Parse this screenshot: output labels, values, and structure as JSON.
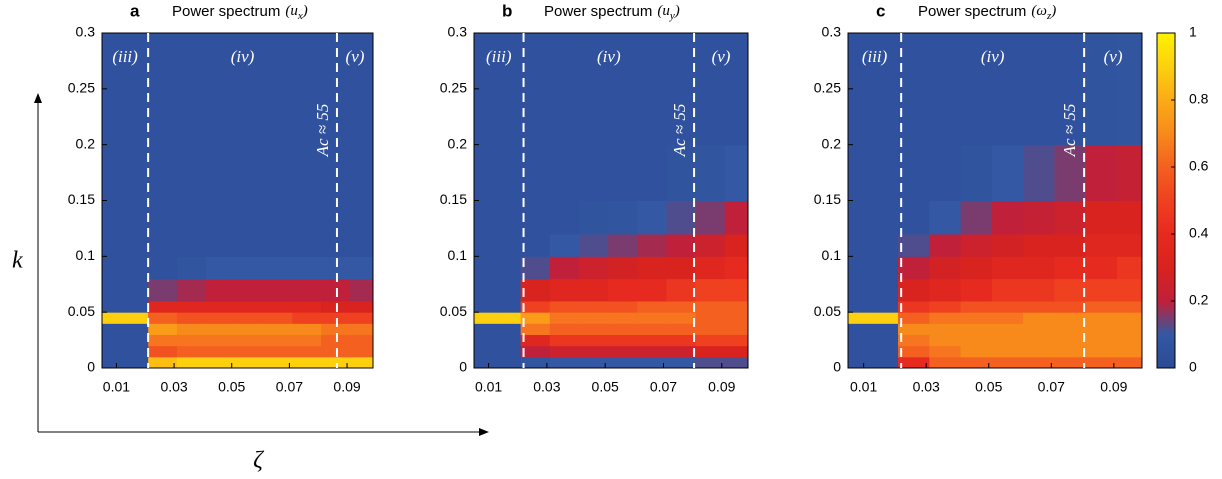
{
  "chart_data": [
    {
      "type": "heatmap",
      "panel": "a",
      "title": "Power spectrum",
      "title_math": [
        "(u",
        "x",
        ")"
      ],
      "xlim": [
        0.005,
        0.099
      ],
      "ylim": [
        0,
        0.3
      ],
      "xticks": [
        0.01,
        0.03,
        0.05,
        0.07,
        0.09
      ],
      "yticks": [
        0,
        0.05,
        0.1,
        0.15,
        0.2,
        0.25,
        0.3
      ],
      "x_edges": [
        0.005,
        0.013,
        0.021,
        0.031,
        0.041,
        0.051,
        0.061,
        0.071,
        0.081,
        0.091,
        0.099
      ],
      "y_edges": [
        0,
        0.01,
        0.02,
        0.03,
        0.04,
        0.05,
        0.06,
        0.08,
        0.1,
        0.12,
        0.15,
        0.2,
        0.3
      ],
      "z": [
        [
          0.05,
          0.05,
          0.85,
          0.9,
          0.9,
          0.9,
          0.9,
          0.9,
          0.9,
          0.9
        ],
        [
          0.05,
          0.05,
          0.55,
          0.6,
          0.6,
          0.6,
          0.6,
          0.6,
          0.6,
          0.6
        ],
        [
          0.05,
          0.05,
          0.65,
          0.65,
          0.65,
          0.65,
          0.65,
          0.65,
          0.6,
          0.6
        ],
        [
          0.05,
          0.05,
          0.75,
          0.7,
          0.7,
          0.7,
          0.7,
          0.7,
          0.65,
          0.65
        ],
        [
          0.9,
          0.9,
          0.6,
          0.55,
          0.55,
          0.55,
          0.55,
          0.5,
          0.5,
          0.5
        ],
        [
          0.05,
          0.05,
          0.35,
          0.35,
          0.35,
          0.35,
          0.35,
          0.35,
          0.3,
          0.3
        ],
        [
          0.05,
          0.05,
          0.15,
          0.18,
          0.2,
          0.2,
          0.2,
          0.2,
          0.2,
          0.18
        ],
        [
          0.05,
          0.05,
          0.06,
          0.08,
          0.1,
          0.1,
          0.1,
          0.1,
          0.1,
          0.1
        ],
        [
          0.05,
          0.05,
          0.05,
          0.05,
          0.05,
          0.05,
          0.05,
          0.05,
          0.05,
          0.05
        ],
        [
          0.05,
          0.05,
          0.05,
          0.05,
          0.05,
          0.05,
          0.05,
          0.05,
          0.05,
          0.05
        ],
        [
          0.05,
          0.05,
          0.05,
          0.05,
          0.05,
          0.05,
          0.05,
          0.05,
          0.05,
          0.05
        ],
        [
          0.05,
          0.05,
          0.05,
          0.05,
          0.05,
          0.05,
          0.05,
          0.05,
          0.05,
          0.05
        ]
      ],
      "boundaries": [
        0.021,
        0.0865
      ],
      "regions": [
        "(iii)",
        "(iv)",
        "(v)"
      ],
      "annotation": "Ac ≈ 55",
      "y_axis_label": "k",
      "x_axis_label": "ζ"
    },
    {
      "type": "heatmap",
      "panel": "b",
      "title": "Power spectrum",
      "title_math": [
        "(u",
        "y",
        ")"
      ],
      "xlim": [
        0.005,
        0.099
      ],
      "ylim": [
        0,
        0.3
      ],
      "xticks": [
        0.01,
        0.03,
        0.05,
        0.07,
        0.09
      ],
      "yticks": [
        0,
        0.05,
        0.1,
        0.15,
        0.2,
        0.25,
        0.3
      ],
      "x_edges": [
        0.005,
        0.013,
        0.021,
        0.031,
        0.041,
        0.051,
        0.061,
        0.071,
        0.081,
        0.091,
        0.099
      ],
      "y_edges": [
        0,
        0.01,
        0.02,
        0.03,
        0.04,
        0.05,
        0.06,
        0.08,
        0.1,
        0.12,
        0.15,
        0.2,
        0.3
      ],
      "z": [
        [
          0.05,
          0.05,
          0.08,
          0.1,
          0.1,
          0.1,
          0.1,
          0.1,
          0.12,
          0.12
        ],
        [
          0.05,
          0.05,
          0.2,
          0.25,
          0.25,
          0.25,
          0.25,
          0.25,
          0.3,
          0.3
        ],
        [
          0.05,
          0.05,
          0.35,
          0.45,
          0.45,
          0.45,
          0.45,
          0.45,
          0.5,
          0.5
        ],
        [
          0.05,
          0.05,
          0.65,
          0.6,
          0.6,
          0.6,
          0.6,
          0.6,
          0.6,
          0.6
        ],
        [
          0.9,
          0.9,
          0.75,
          0.65,
          0.65,
          0.65,
          0.65,
          0.65,
          0.6,
          0.6
        ],
        [
          0.05,
          0.05,
          0.5,
          0.55,
          0.55,
          0.55,
          0.6,
          0.6,
          0.6,
          0.6
        ],
        [
          0.05,
          0.05,
          0.3,
          0.35,
          0.35,
          0.4,
          0.4,
          0.45,
          0.5,
          0.5
        ],
        [
          0.05,
          0.05,
          0.12,
          0.2,
          0.25,
          0.28,
          0.3,
          0.3,
          0.35,
          0.4
        ],
        [
          0.05,
          0.05,
          0.06,
          0.1,
          0.12,
          0.15,
          0.18,
          0.2,
          0.25,
          0.3
        ],
        [
          0.05,
          0.05,
          0.05,
          0.06,
          0.07,
          0.08,
          0.1,
          0.12,
          0.15,
          0.2
        ],
        [
          0.05,
          0.05,
          0.05,
          0.05,
          0.05,
          0.05,
          0.06,
          0.07,
          0.08,
          0.1
        ],
        [
          0.05,
          0.05,
          0.05,
          0.05,
          0.05,
          0.05,
          0.05,
          0.05,
          0.05,
          0.05
        ]
      ],
      "boundaries": [
        0.022,
        0.0805
      ],
      "regions": [
        "(iii)",
        "(iv)",
        "(v)"
      ],
      "annotation": "Ac ≈ 55"
    },
    {
      "type": "heatmap",
      "panel": "c",
      "title": "Power spectrum",
      "title_math": [
        "(ω",
        "z",
        ")"
      ],
      "xlim": [
        0.005,
        0.099
      ],
      "ylim": [
        0,
        0.3
      ],
      "xticks": [
        0.01,
        0.03,
        0.05,
        0.07,
        0.09
      ],
      "yticks": [
        0,
        0.05,
        0.1,
        0.15,
        0.2,
        0.25,
        0.3
      ],
      "x_edges": [
        0.005,
        0.013,
        0.021,
        0.031,
        0.041,
        0.051,
        0.061,
        0.071,
        0.081,
        0.091,
        0.099
      ],
      "y_edges": [
        0,
        0.01,
        0.02,
        0.03,
        0.04,
        0.05,
        0.06,
        0.08,
        0.1,
        0.12,
        0.15,
        0.2,
        0.3
      ],
      "z": [
        [
          0.05,
          0.05,
          0.4,
          0.6,
          0.6,
          0.6,
          0.6,
          0.6,
          0.6,
          0.6
        ],
        [
          0.05,
          0.05,
          0.6,
          0.65,
          0.7,
          0.7,
          0.7,
          0.7,
          0.7,
          0.7
        ],
        [
          0.05,
          0.05,
          0.65,
          0.7,
          0.7,
          0.7,
          0.7,
          0.7,
          0.7,
          0.7
        ],
        [
          0.05,
          0.05,
          0.7,
          0.7,
          0.7,
          0.7,
          0.7,
          0.7,
          0.7,
          0.7
        ],
        [
          0.9,
          0.9,
          0.6,
          0.65,
          0.65,
          0.65,
          0.7,
          0.7,
          0.7,
          0.7
        ],
        [
          0.05,
          0.05,
          0.45,
          0.5,
          0.55,
          0.55,
          0.55,
          0.55,
          0.6,
          0.6
        ],
        [
          0.05,
          0.05,
          0.3,
          0.35,
          0.4,
          0.45,
          0.45,
          0.5,
          0.5,
          0.5
        ],
        [
          0.05,
          0.05,
          0.2,
          0.28,
          0.3,
          0.35,
          0.35,
          0.4,
          0.4,
          0.45
        ],
        [
          0.05,
          0.05,
          0.12,
          0.2,
          0.25,
          0.28,
          0.3,
          0.3,
          0.35,
          0.35
        ],
        [
          0.05,
          0.05,
          0.06,
          0.1,
          0.15,
          0.2,
          0.22,
          0.25,
          0.3,
          0.3
        ],
        [
          0.05,
          0.05,
          0.05,
          0.06,
          0.07,
          0.1,
          0.12,
          0.15,
          0.2,
          0.22
        ],
        [
          0.05,
          0.05,
          0.05,
          0.05,
          0.05,
          0.05,
          0.05,
          0.06,
          0.07,
          0.08
        ]
      ],
      "boundaries": [
        0.022,
        0.0805
      ],
      "regions": [
        "(iii)",
        "(iv)",
        "(v)"
      ],
      "annotation": "Ac ≈ 55",
      "colorbar": {
        "lim": [
          0,
          1
        ],
        "ticks": [
          0,
          0.2,
          0.4,
          0.6,
          0.8,
          1
        ]
      },
      "colorscale": [
        "#2b4a96",
        "#3458a3",
        "#c0203a",
        "#d8231f",
        "#e72a1f",
        "#ef4120",
        "#f46020",
        "#f88a1b",
        "#fbab17",
        "#fdd00f",
        "#fff200"
      ]
    }
  ]
}
